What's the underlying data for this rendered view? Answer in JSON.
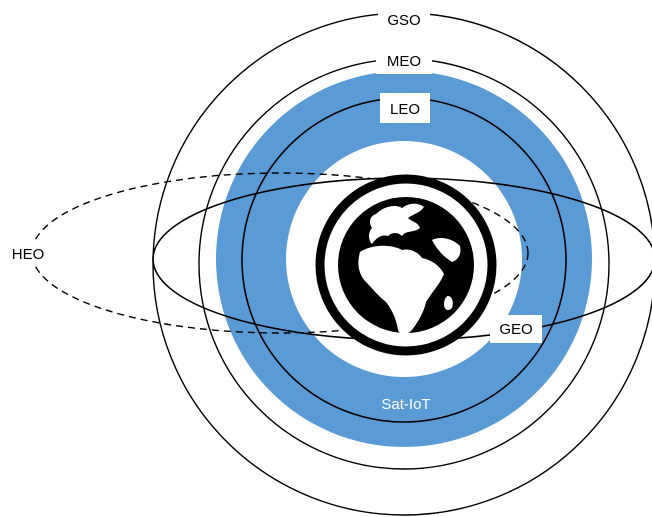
{
  "labels": {
    "gso": "GSO",
    "meo": "MEO",
    "leo": "LEO",
    "heo": "HEO",
    "geo": "GEO",
    "band": "Sat-IoT"
  },
  "colors": {
    "band": "#5B9BD5",
    "line": "#000000",
    "background": "#FFFFFF",
    "band_text": "#FFFFFF"
  },
  "icons": {
    "center": "earth-globe-icon"
  }
}
